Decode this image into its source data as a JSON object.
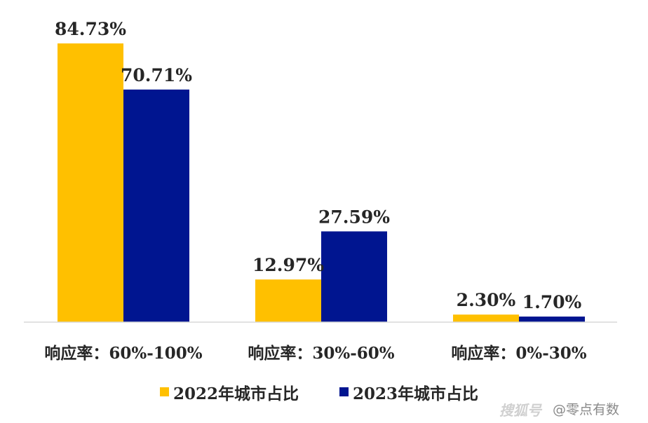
{
  "chart_data": {
    "type": "bar",
    "categories": [
      "响应率：60%-100%",
      "响应率：30%-60%",
      "响应率：0%-30%"
    ],
    "series": [
      {
        "name": "2022年城市占比",
        "values": [
          84.73,
          12.97,
          2.3
        ],
        "labels": [
          "84.73%",
          "12.97%",
          "2.30%"
        ],
        "color": "#FFC000"
      },
      {
        "name": "2023年城市占比",
        "values": [
          70.71,
          27.59,
          1.7
        ],
        "labels": [
          "70.71%",
          "27.59%",
          "1.70%"
        ],
        "color": "#001590"
      }
    ],
    "ylim": [
      0,
      84.73
    ],
    "grid": false,
    "legend_position": "bottom-center",
    "baseline_color": "#D9D9D9"
  },
  "watermark": {
    "logo_text": "搜狐号",
    "text": "@零点有数"
  }
}
